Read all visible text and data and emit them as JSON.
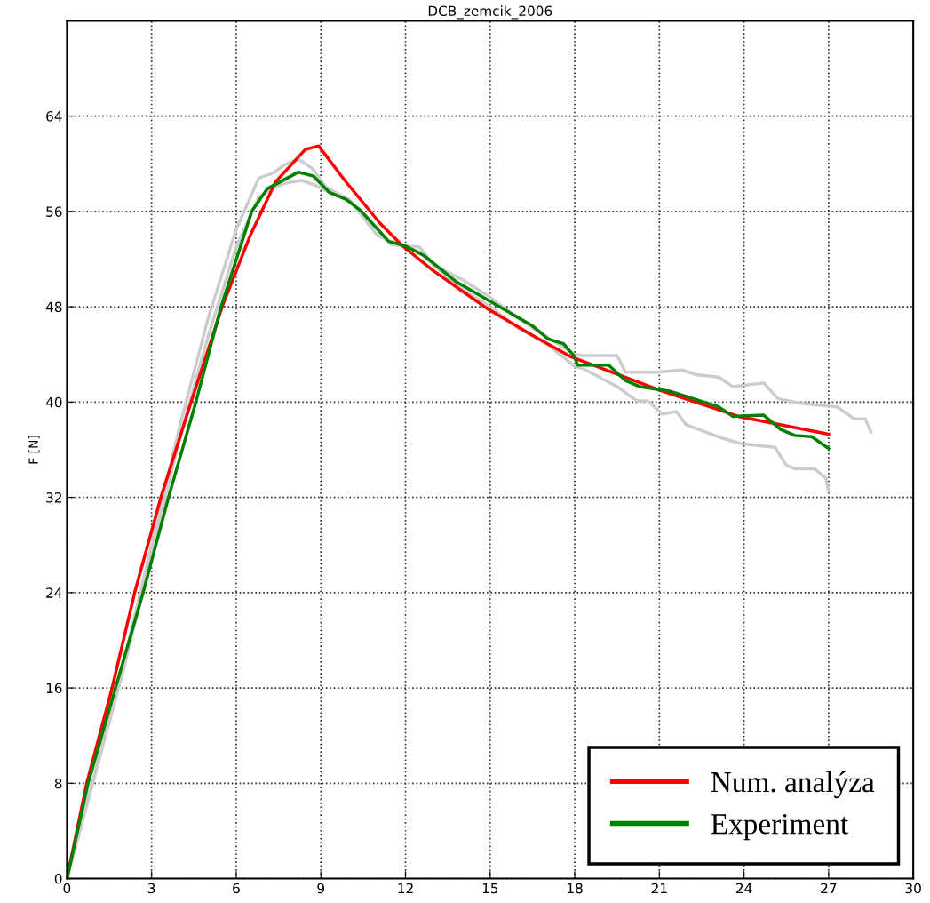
{
  "chart_data": {
    "type": "line",
    "title": "DCB_zemcik_2006",
    "ylabel": "F [N]",
    "xlim": [
      0,
      30
    ],
    "xticks": [
      0,
      3,
      6,
      9,
      12,
      15,
      18,
      21,
      24,
      27,
      30
    ],
    "ylim": [
      0,
      72
    ],
    "yticks": [
      0,
      8,
      16,
      24,
      32,
      40,
      48,
      56,
      64
    ],
    "grid": true,
    "legend": "bottom right",
    "series": [
      {
        "color": "#cccccc",
        "x": [
          0,
          2,
          4,
          5,
          6,
          6.8,
          7.3,
          7.7,
          8.2,
          8.7,
          9.2,
          10,
          11,
          11.5,
          12.5,
          13,
          14,
          15,
          16,
          17,
          18,
          18.3,
          19.5,
          19.8,
          20.9,
          21.8,
          22.3,
          23.1,
          23.6,
          24.7,
          25.2,
          26.0,
          27.3,
          27.9,
          28.3,
          28.5
        ],
        "values": [
          0,
          18,
          38,
          47,
          54.5,
          58.8,
          59.2,
          59.9,
          60.4,
          59.6,
          58,
          57,
          54.5,
          53.2,
          53,
          51.5,
          50.3,
          48.8,
          47,
          45.5,
          44,
          43.9,
          43.9,
          42.5,
          42.5,
          42.7,
          42.3,
          42.1,
          41.3,
          41.6,
          40.3,
          39.9,
          39.6,
          38.6,
          38.6,
          37.5
        ]
      },
      {
        "color": "#cccccc",
        "x": [
          0,
          2,
          4,
          5,
          6,
          6.8,
          7.3,
          7.8,
          8.3,
          8.8,
          9.3,
          10,
          11,
          11.5,
          12.5,
          13,
          14,
          15,
          16,
          17,
          18,
          18.3,
          19.5,
          20.2,
          20.6,
          21.1,
          21.6,
          21.95,
          23.2,
          23.9,
          25.1,
          25.5,
          25.8,
          26.5,
          26.9,
          27.0
        ],
        "values": [
          0,
          17.5,
          37,
          45.5,
          53,
          57.2,
          58,
          58.4,
          58.6,
          58.2,
          57.6,
          57,
          54,
          53.4,
          52.6,
          51.5,
          49.5,
          48,
          46.2,
          44.9,
          43,
          42.8,
          41.3,
          40.1,
          40.1,
          39,
          39.2,
          38.1,
          37,
          36.5,
          36.2,
          34.7,
          34.4,
          34.4,
          33.6,
          32.5
        ]
      },
      {
        "name": "Num. analýza",
        "color": "#ff0000",
        "x": [
          0,
          0.7,
          1.6,
          2.4,
          3.33,
          4.4,
          5.5,
          6.5,
          7.4,
          8.45,
          8.92,
          9.85,
          11.1,
          11.9,
          13,
          14.86,
          16.5,
          17.87,
          21,
          23.8,
          26.8,
          27
        ],
        "values": [
          0,
          8,
          16,
          24,
          32,
          40,
          48,
          54,
          58.5,
          61.2,
          61.5,
          58.6,
          55,
          53.1,
          51,
          47.9,
          45.6,
          43.8,
          41,
          38.8,
          37.4,
          37.3
        ]
      },
      {
        "name": "Experiment",
        "color": "#008000",
        "x": [
          0,
          0.75,
          1.72,
          2.7,
          3.6,
          4.57,
          5.45,
          6.55,
          7.1,
          8.2,
          8.74,
          9.3,
          9.9,
          10.4,
          11.4,
          12,
          12.65,
          13.8,
          16.5,
          17.05,
          17.6,
          18,
          18.1,
          19.2,
          19.8,
          20.3,
          21.4,
          23.1,
          23.6,
          24.7,
          25.3,
          25.8,
          26.4,
          27
        ],
        "values": [
          0,
          8,
          16,
          24,
          32,
          40,
          47.9,
          56,
          57.9,
          59.3,
          58.96,
          57.6,
          57,
          56.1,
          53.5,
          53.1,
          52.3,
          50.1,
          46.4,
          45.3,
          44.9,
          43.8,
          43.1,
          43.1,
          41.8,
          41.3,
          40.9,
          39.6,
          38.8,
          38.9,
          37.7,
          37.2,
          37.1,
          36.1
        ]
      }
    ]
  }
}
